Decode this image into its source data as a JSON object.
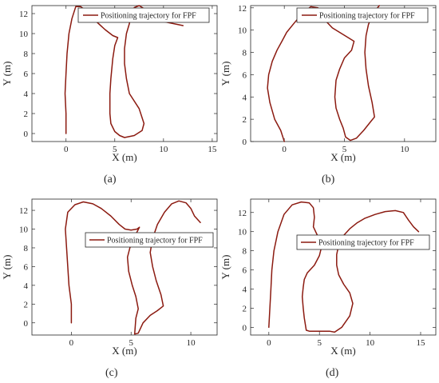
{
  "figure": {
    "panel_labels": [
      "(a)",
      "(b)",
      "(c)",
      "(d)"
    ]
  },
  "colors": {
    "trajectory": "#8b1a10",
    "axes": "#262626",
    "background": "#ffffff"
  },
  "chart_data": [
    {
      "type": "line",
      "panel": "(a)",
      "xlabel": "X (m)",
      "ylabel": "Y (m)",
      "xlim": [
        -3.5,
        15.5
      ],
      "ylim": [
        -0.8,
        12.8
      ],
      "xticks": [
        0,
        5,
        10,
        15
      ],
      "yticks": [
        0,
        2,
        4,
        6,
        8,
        10,
        12
      ],
      "legend": "top-right",
      "grid": false,
      "series": [
        {
          "name": "Positioning trajectory for FPF",
          "x": [
            0,
            0.0,
            -0.1,
            0.0,
            0.1,
            0.3,
            0.6,
            1.0,
            1.5,
            2.2,
            3.0,
            4.0,
            4.8,
            5.3,
            5.0,
            4.8,
            4.6,
            4.5,
            4.5,
            4.6,
            5.0,
            5.5,
            6.0,
            7.0,
            7.8,
            8.0,
            7.5,
            6.5,
            6.2,
            6.0,
            6.0,
            6.2,
            6.5,
            6.7,
            7.0,
            7.5,
            8.0,
            8.5,
            9.0,
            10.0,
            11.0,
            12.0
          ],
          "y": [
            0,
            2,
            4,
            6,
            8,
            10,
            11.5,
            12.7,
            12.7,
            12.2,
            11.3,
            10.4,
            9.8,
            9.6,
            8.8,
            7.5,
            5.5,
            4.0,
            2.0,
            1.0,
            0.2,
            -0.2,
            -0.4,
            -0.2,
            0.3,
            1.0,
            2.5,
            4.0,
            5.5,
            7.0,
            8.5,
            10.0,
            11.0,
            12.0,
            12.6,
            12.8,
            12.5,
            12.0,
            11.6,
            11.2,
            11.0,
            10.8
          ]
        }
      ]
    },
    {
      "type": "line",
      "panel": "(b)",
      "xlabel": "X (m)",
      "ylabel": "Y (m)",
      "xlim": [
        -2.8,
        12.6
      ],
      "ylim": [
        0,
        12.2
      ],
      "xticks": [
        0,
        5,
        10
      ],
      "yticks": [
        0,
        2,
        4,
        6,
        8,
        10,
        12
      ],
      "legend": "top-right",
      "grid": false,
      "series": [
        {
          "name": "Positioning trajectory for FPF",
          "x": [
            0,
            -0.3,
            -0.8,
            -1.2,
            -1.4,
            -1.3,
            -1.0,
            -0.6,
            -0.2,
            0.2,
            0.8,
            1.5,
            2.2,
            2.8,
            3.2,
            4.0,
            5.2,
            5.8,
            5.6,
            5.0,
            4.6,
            4.3,
            4.2,
            4.3,
            4.6,
            4.9,
            5.1,
            5.5,
            6.0,
            6.6,
            7.2,
            7.5,
            7.3,
            7.0,
            6.8,
            6.7,
            6.8,
            7.0,
            7.3,
            7.6,
            7.9
          ],
          "y": [
            0,
            1.0,
            2.0,
            3.5,
            4.8,
            6.0,
            7.2,
            8.2,
            9.0,
            9.8,
            10.6,
            11.5,
            12.1,
            12.0,
            11.1,
            10.2,
            9.4,
            9.0,
            8.2,
            7.5,
            6.5,
            5.5,
            4.0,
            3.0,
            2.0,
            1.2,
            0.4,
            0.1,
            0.3,
            1.0,
            1.8,
            2.2,
            3.5,
            5.0,
            6.5,
            8.0,
            9.5,
            10.5,
            11.3,
            11.8,
            12.2
          ]
        }
      ]
    },
    {
      "type": "line",
      "panel": "(c)",
      "xlabel": "X (m)",
      "ylabel": "Y (m)",
      "xlim": [
        -3.3,
        12.2
      ],
      "ylim": [
        -1.3,
        13.2
      ],
      "xticks": [
        0,
        5,
        10
      ],
      "yticks": [
        0,
        2,
        4,
        6,
        8,
        10,
        12
      ],
      "legend": "top-right",
      "grid": false,
      "series": [
        {
          "name": "Positioning trajectory for FPF",
          "x": [
            0,
            0.0,
            -0.2,
            -0.3,
            -0.4,
            -0.5,
            -0.3,
            0.3,
            1.0,
            1.8,
            2.5,
            3.3,
            4.0,
            4.5,
            5.0,
            5.5,
            5.7,
            5.5,
            5.2,
            4.9,
            4.7,
            4.8,
            5.1,
            5.4,
            5.6,
            5.4,
            5.3,
            5.6,
            6.0,
            6.6,
            7.2,
            7.7,
            7.5,
            7.1,
            6.8,
            6.6,
            6.8,
            7.2,
            7.8,
            8.4,
            9.0,
            9.6,
            10.0,
            10.3,
            10.8
          ],
          "y": [
            0,
            2,
            4,
            6,
            8,
            10,
            11.8,
            12.6,
            12.9,
            12.7,
            12.2,
            11.4,
            10.5,
            10.0,
            9.9,
            10.0,
            10.2,
            9.7,
            9.0,
            8.0,
            7.0,
            5.5,
            4.0,
            2.8,
            1.5,
            0.5,
            -1.2,
            -1.1,
            0.0,
            0.8,
            1.3,
            1.8,
            3.0,
            4.5,
            6.0,
            7.5,
            9.0,
            10.5,
            11.8,
            12.7,
            13.0,
            12.8,
            12.2,
            11.4,
            10.7
          ]
        }
      ]
    },
    {
      "type": "line",
      "panel": "(d)",
      "xlabel": "X (m)",
      "ylabel": "Y (m)",
      "xlim": [
        -1.8,
        16.5
      ],
      "ylim": [
        -0.8,
        13.4
      ],
      "xticks": [
        0,
        5,
        10,
        15
      ],
      "yticks": [
        0,
        2,
        4,
        6,
        8,
        10,
        12
      ],
      "legend": "top-right",
      "grid": false,
      "series": [
        {
          "name": "Positioning trajectory for FPF",
          "x": [
            0,
            0.1,
            0.2,
            0.3,
            0.5,
            0.9,
            1.5,
            2.3,
            3.2,
            4.0,
            4.4,
            4.5,
            4.4,
            4.8,
            5.3,
            5.0,
            4.5,
            3.8,
            3.5,
            3.4,
            3.3,
            3.4,
            3.5,
            3.7,
            4.0,
            5.0,
            6.0,
            6.5,
            7.2,
            8.0,
            8.3,
            8.0,
            7.4,
            6.9,
            6.7,
            6.7,
            6.9,
            7.3,
            8.0,
            8.7,
            9.5,
            10.5,
            11.5,
            12.5,
            13.3,
            13.8,
            14.3,
            14.8
          ],
          "y": [
            0,
            2,
            4,
            6,
            8,
            10,
            11.8,
            12.8,
            13.1,
            13.0,
            12.5,
            11.5,
            10.5,
            9.6,
            8.8,
            7.5,
            6.5,
            5.7,
            5.0,
            4.2,
            3.2,
            2.0,
            1.0,
            -0.3,
            -0.4,
            -0.4,
            -0.4,
            -0.5,
            0.0,
            1.2,
            2.5,
            3.6,
            4.5,
            5.5,
            6.5,
            7.6,
            8.6,
            9.5,
            10.3,
            10.9,
            11.4,
            11.8,
            12.1,
            12.2,
            12.0,
            11.2,
            10.5,
            10.0
          ]
        }
      ]
    }
  ]
}
